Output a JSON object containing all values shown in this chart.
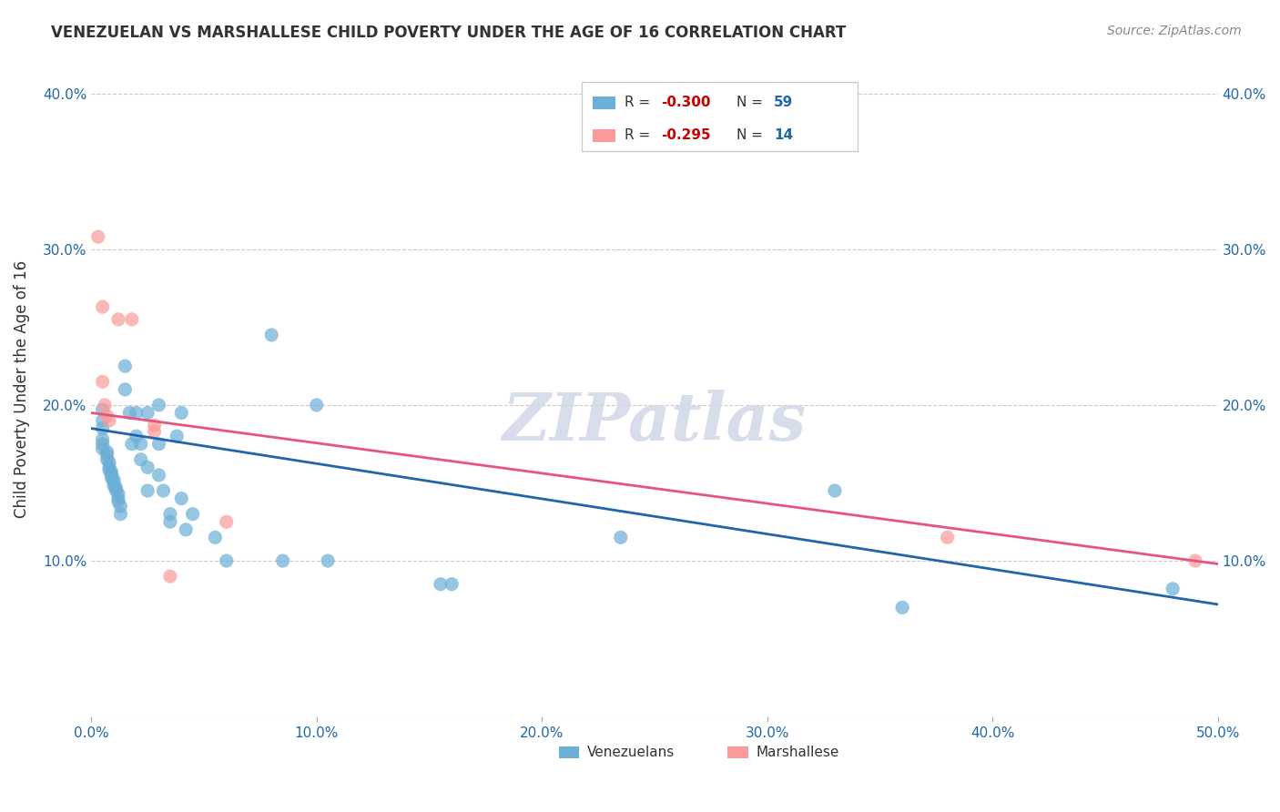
{
  "title": "VENEZUELAN VS MARSHALLESE CHILD POVERTY UNDER THE AGE OF 16 CORRELATION CHART",
  "source": "Source: ZipAtlas.com",
  "ylabel": "Child Poverty Under the Age of 16",
  "xlim": [
    0,
    0.5
  ],
  "ylim": [
    0,
    0.42
  ],
  "xticks": [
    0.0,
    0.1,
    0.2,
    0.3,
    0.4,
    0.5
  ],
  "yticks": [
    0.0,
    0.1,
    0.2,
    0.3,
    0.4
  ],
  "xtick_labels": [
    "0.0%",
    "10.0%",
    "20.0%",
    "30.0%",
    "40.0%",
    "50.0%"
  ],
  "ytick_labels": [
    "",
    "10.0%",
    "20.0%",
    "30.0%",
    "40.0%"
  ],
  "blue_color": "#6baed6",
  "pink_color": "#fb9a99",
  "line_blue": "#2166ac",
  "line_pink": "#e75480",
  "watermark": "ZIPatlas",
  "watermark_color": "#d0d8e8",
  "blue_dots": [
    [
      0.005,
      0.197
    ],
    [
      0.005,
      0.19
    ],
    [
      0.005,
      0.185
    ],
    [
      0.005,
      0.178
    ],
    [
      0.005,
      0.175
    ],
    [
      0.005,
      0.172
    ],
    [
      0.007,
      0.17
    ],
    [
      0.007,
      0.168
    ],
    [
      0.007,
      0.165
    ],
    [
      0.008,
      0.163
    ],
    [
      0.008,
      0.16
    ],
    [
      0.008,
      0.158
    ],
    [
      0.009,
      0.157
    ],
    [
      0.009,
      0.155
    ],
    [
      0.009,
      0.153
    ],
    [
      0.01,
      0.152
    ],
    [
      0.01,
      0.15
    ],
    [
      0.01,
      0.148
    ],
    [
      0.011,
      0.147
    ],
    [
      0.011,
      0.145
    ],
    [
      0.012,
      0.143
    ],
    [
      0.012,
      0.14
    ],
    [
      0.012,
      0.138
    ],
    [
      0.013,
      0.135
    ],
    [
      0.013,
      0.13
    ],
    [
      0.015,
      0.225
    ],
    [
      0.015,
      0.21
    ],
    [
      0.017,
      0.195
    ],
    [
      0.018,
      0.175
    ],
    [
      0.02,
      0.195
    ],
    [
      0.02,
      0.18
    ],
    [
      0.022,
      0.175
    ],
    [
      0.022,
      0.165
    ],
    [
      0.025,
      0.195
    ],
    [
      0.025,
      0.16
    ],
    [
      0.025,
      0.145
    ],
    [
      0.03,
      0.2
    ],
    [
      0.03,
      0.175
    ],
    [
      0.03,
      0.155
    ],
    [
      0.032,
      0.145
    ],
    [
      0.035,
      0.13
    ],
    [
      0.035,
      0.125
    ],
    [
      0.038,
      0.18
    ],
    [
      0.04,
      0.195
    ],
    [
      0.04,
      0.14
    ],
    [
      0.042,
      0.12
    ],
    [
      0.045,
      0.13
    ],
    [
      0.055,
      0.115
    ],
    [
      0.06,
      0.1
    ],
    [
      0.08,
      0.245
    ],
    [
      0.085,
      0.1
    ],
    [
      0.1,
      0.2
    ],
    [
      0.105,
      0.1
    ],
    [
      0.155,
      0.085
    ],
    [
      0.16,
      0.085
    ],
    [
      0.235,
      0.115
    ],
    [
      0.33,
      0.145
    ],
    [
      0.36,
      0.07
    ],
    [
      0.48,
      0.082
    ]
  ],
  "pink_dots": [
    [
      0.003,
      0.308
    ],
    [
      0.005,
      0.263
    ],
    [
      0.005,
      0.215
    ],
    [
      0.006,
      0.2
    ],
    [
      0.007,
      0.193
    ],
    [
      0.008,
      0.19
    ],
    [
      0.012,
      0.255
    ],
    [
      0.018,
      0.255
    ],
    [
      0.028,
      0.187
    ],
    [
      0.028,
      0.183
    ],
    [
      0.035,
      0.09
    ],
    [
      0.06,
      0.125
    ],
    [
      0.38,
      0.115
    ],
    [
      0.49,
      0.1
    ]
  ],
  "blue_line_x": [
    0.0,
    0.5
  ],
  "blue_line_y": [
    0.185,
    0.072
  ],
  "pink_line_x": [
    0.0,
    0.5
  ],
  "pink_line_y": [
    0.195,
    0.098
  ]
}
